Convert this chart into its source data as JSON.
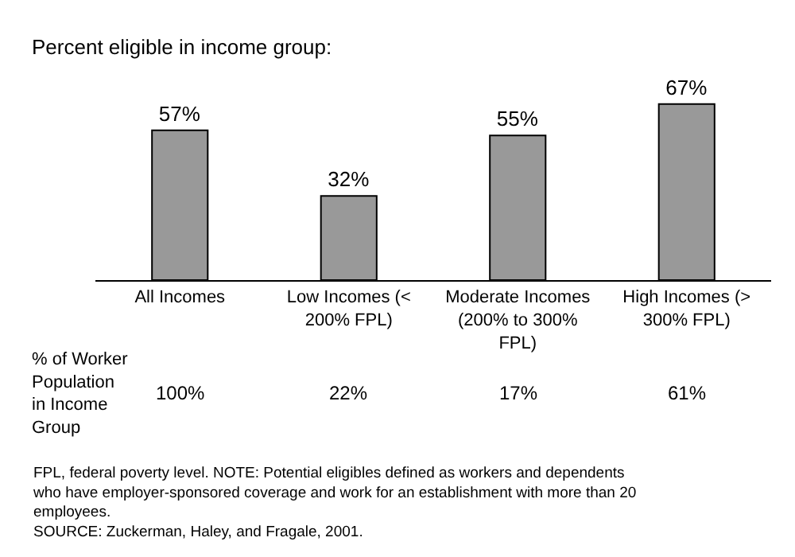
{
  "chart_data": {
    "type": "bar",
    "subtitle": "Percent eligible in income group:",
    "categories": [
      "All Incomes",
      "Low Incomes (< 200% FPL)",
      "Moderate Incomes (200% to 300% FPL)",
      "High Incomes (> 300% FPL)"
    ],
    "values": [
      57,
      32,
      55,
      67
    ],
    "value_labels": [
      "57%",
      "32%",
      "55%",
      "67%"
    ],
    "color": "#999999",
    "legend": false,
    "annotations": [
      "% of Worker Population in Income Group",
      "100%",
      "22%",
      "17%",
      "61%",
      "FPL, federal poverty level. NOTE: Potential eligibles defined as workers and dependents who have employer-sponsored coverage and work for an establishment with more than 20 employees.",
      "SOURCE: Zuckerman, Haley, and Fragale, 2001."
    ]
  }
}
